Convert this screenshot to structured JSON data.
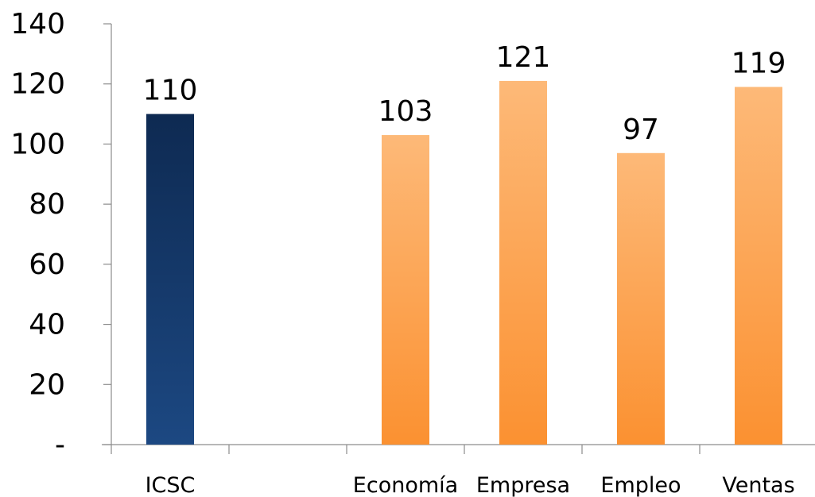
{
  "chart_data": {
    "type": "bar",
    "categories": [
      "ICSC",
      "",
      "Economía",
      "Empresa",
      "Empleo",
      "Ventas"
    ],
    "values": [
      110,
      null,
      103,
      121,
      97,
      119
    ],
    "data_labels": [
      "110",
      "",
      "103",
      "121",
      "97",
      "119"
    ],
    "series_colors": [
      "#1b467e",
      null,
      "#fb9d44",
      "#fb9d44",
      "#fb9d44",
      "#fb9d44"
    ],
    "ylim": [
      0,
      140
    ],
    "yticks": [
      0,
      20,
      40,
      60,
      80,
      100,
      120,
      140
    ],
    "ytick_labels": [
      "-",
      "20",
      "40",
      "60",
      "80",
      "100",
      "120",
      "140"
    ],
    "title": "",
    "xlabel": "",
    "ylabel": "",
    "grid": false,
    "legend": "none"
  }
}
